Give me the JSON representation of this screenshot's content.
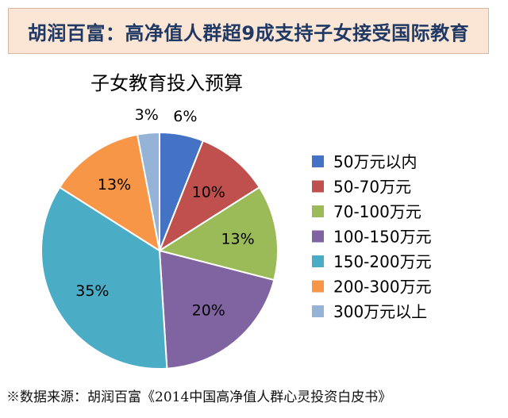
{
  "header": {
    "title": "胡润百富：高净值人群超9成支持子女接受国际教育"
  },
  "chart_data": {
    "type": "pie",
    "title": "子女教育投入预算",
    "categories": [
      "50万元以内",
      "50-70万元",
      "70-100万元",
      "100-150万元",
      "150-200万元",
      "200-300万元",
      "300万元以上"
    ],
    "values": [
      6,
      10,
      13,
      20,
      35,
      13,
      3
    ],
    "data_labels": [
      "6%",
      "10%",
      "13%",
      "20%",
      "35%",
      "13%",
      "3%"
    ],
    "colors": [
      "#4472c4",
      "#c0504d",
      "#9bbb59",
      "#8064a2",
      "#4bacc6",
      "#f79646",
      "#95b3d7"
    ],
    "legend_position": "right"
  },
  "footer": {
    "source": "※数据来源：胡润百富《2014中国高净值人群心灵投资白皮书》"
  }
}
